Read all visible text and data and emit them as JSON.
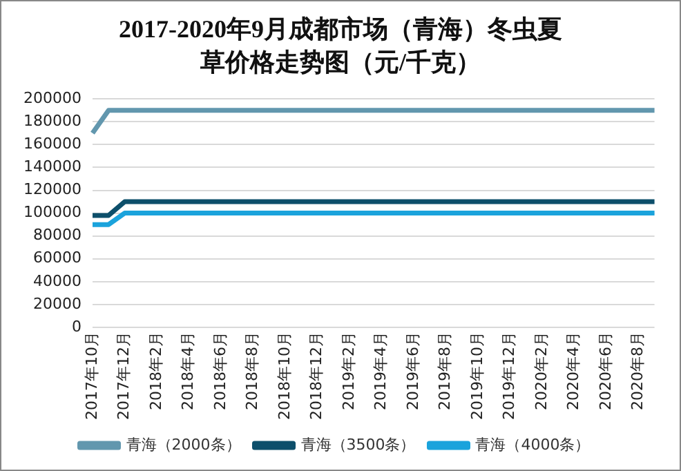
{
  "chart_data": {
    "type": "line",
    "title": "2017-2020年9月成都市场（青海）冬虫夏草价格走势图（元/千克）",
    "categories": [
      "2017年10月",
      null,
      "2017年12月",
      null,
      "2018年2月",
      null,
      "2018年4月",
      null,
      "2018年6月",
      null,
      "2018年8月",
      null,
      "2018年10月",
      null,
      "2018年12月",
      null,
      "2019年2月",
      null,
      "2019年4月",
      null,
      "2019年6月",
      null,
      "2019年8月",
      null,
      "2019年10月",
      null,
      "2019年12月",
      null,
      "2020年2月",
      null,
      "2020年4月",
      null,
      "2020年6月",
      null,
      "2020年8月",
      null
    ],
    "series": [
      {
        "name": "青海（2000条）",
        "color": "#6297ae",
        "values": [
          170000,
          190000,
          190000,
          190000,
          190000,
          190000,
          190000,
          190000,
          190000,
          190000,
          190000,
          190000,
          190000,
          190000,
          190000,
          190000,
          190000,
          190000,
          190000,
          190000,
          190000,
          190000,
          190000,
          190000,
          190000,
          190000,
          190000,
          190000,
          190000,
          190000,
          190000,
          190000,
          190000,
          190000,
          190000,
          190000
        ]
      },
      {
        "name": "青海（3500条）",
        "color": "#0d4f6b",
        "values": [
          98000,
          98000,
          110000,
          110000,
          110000,
          110000,
          110000,
          110000,
          110000,
          110000,
          110000,
          110000,
          110000,
          110000,
          110000,
          110000,
          110000,
          110000,
          110000,
          110000,
          110000,
          110000,
          110000,
          110000,
          110000,
          110000,
          110000,
          110000,
          110000,
          110000,
          110000,
          110000,
          110000,
          110000,
          110000,
          110000
        ]
      },
      {
        "name": "青海（4000条）",
        "color": "#1ba3dc",
        "values": [
          90000,
          90000,
          100000,
          100000,
          100000,
          100000,
          100000,
          100000,
          100000,
          100000,
          100000,
          100000,
          100000,
          100000,
          100000,
          100000,
          100000,
          100000,
          100000,
          100000,
          100000,
          100000,
          100000,
          100000,
          100000,
          100000,
          100000,
          100000,
          100000,
          100000,
          100000,
          100000,
          100000,
          100000,
          100000,
          100000
        ]
      }
    ],
    "ylim": [
      0,
      200000
    ],
    "yticks": [
      0,
      20000,
      40000,
      60000,
      80000,
      100000,
      120000,
      140000,
      160000,
      180000,
      200000
    ],
    "grid": "y",
    "legend": "bottom",
    "marker": "none",
    "line_style": "solid"
  }
}
